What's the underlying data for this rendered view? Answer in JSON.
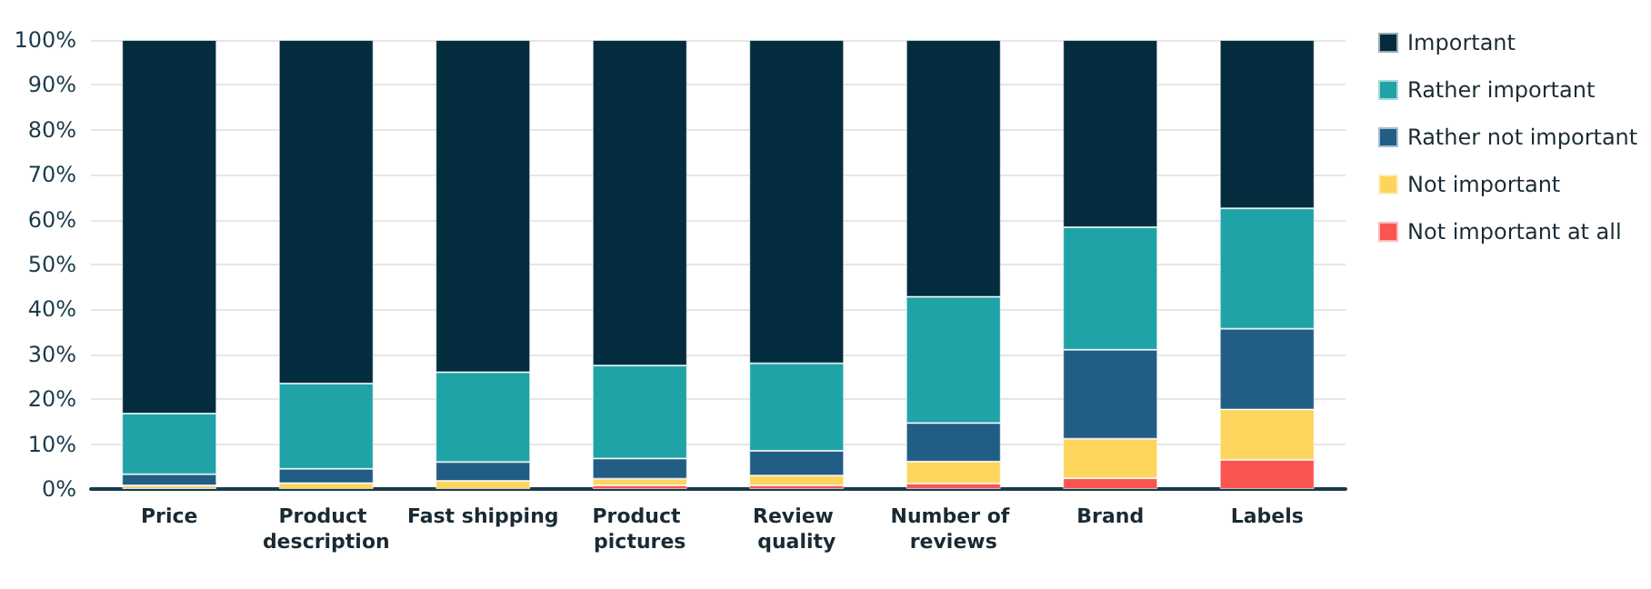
{
  "chart_data": {
    "type": "bar",
    "stacked": true,
    "categories": [
      "Price",
      "Product description",
      "Fast shipping",
      "Product pictures",
      "Review quality",
      "Number of reviews",
      "Brand",
      "Labels"
    ],
    "series": [
      {
        "name": "Not important at all",
        "color": "#fb5552",
        "values": [
          0.2,
          null,
          null,
          0.8,
          0.8,
          1.2,
          2.4,
          6.5
        ]
      },
      {
        "name": "Not important",
        "color": "#fdd55c",
        "values": [
          0.6,
          1.3,
          1.8,
          1.5,
          2.2,
          4.9,
          8.8,
          11.2
        ]
      },
      {
        "name": "Rather not important",
        "color": "#215d84",
        "values": [
          2.5,
          3.2,
          4.2,
          4.5,
          5.5,
          8.6,
          19.8,
          18
        ]
      },
      {
        "name": "Rather important",
        "color": "#1fa3a6",
        "values": [
          13.5,
          19,
          20,
          20.7,
          19.5,
          28.1,
          27.3,
          26.8
        ]
      },
      {
        "name": "Important",
        "color": "#032d3f",
        "values": [
          83.2,
          76.5,
          74,
          72.5,
          72,
          57.2,
          41.7,
          37.5
        ]
      }
    ],
    "ylim": [
      0,
      100
    ],
    "yticks": [
      {
        "value": 0,
        "label": "0%"
      },
      {
        "value": 10,
        "label": "10%"
      },
      {
        "value": 20,
        "label": "20%"
      },
      {
        "value": 30,
        "label": "30%"
      },
      {
        "value": 40,
        "label": "40%"
      },
      {
        "value": 50,
        "label": "50%"
      },
      {
        "value": 60,
        "label": "60%"
      },
      {
        "value": 70,
        "label": "70%"
      },
      {
        "value": 80,
        "label": "80%"
      },
      {
        "value": 90,
        "label": "90%"
      },
      {
        "value": 100,
        "label": "100%"
      }
    ],
    "grid": "y",
    "legend": "right"
  }
}
